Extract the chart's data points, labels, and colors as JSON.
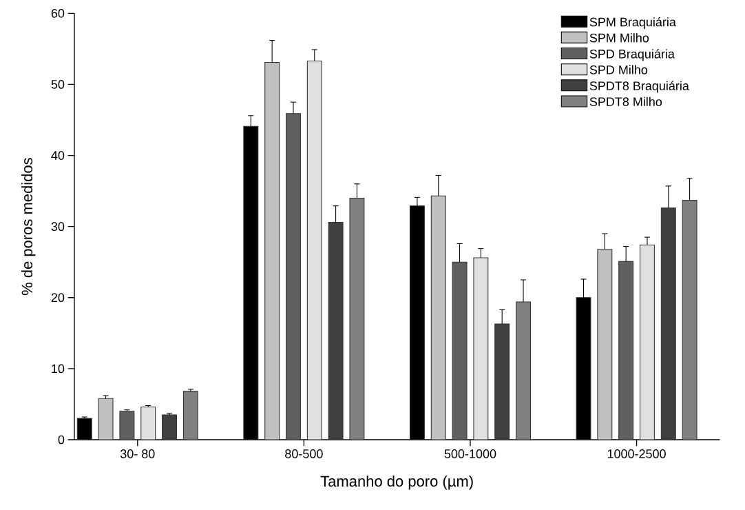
{
  "chart_data": {
    "type": "bar",
    "xlabel": "Tamanho do poro (µm)",
    "ylabel": "% de poros medidos",
    "categories": [
      "30- 80",
      "80-500",
      "500-1000",
      "1000-2500"
    ],
    "series": [
      {
        "name": "SPM Braquiária",
        "color": "#000000",
        "values": [
          3.0,
          44.1,
          32.9,
          20.0
        ],
        "errors": [
          0.2,
          1.5,
          1.2,
          2.6
        ]
      },
      {
        "name": "SPM Milho",
        "color": "#c0c0c0",
        "values": [
          5.8,
          53.1,
          34.3,
          26.8
        ],
        "errors": [
          0.4,
          3.1,
          2.9,
          2.2
        ]
      },
      {
        "name": "SPD Braquiária",
        "color": "#606060",
        "values": [
          4.0,
          45.9,
          25.0,
          25.1
        ],
        "errors": [
          0.2,
          1.6,
          2.6,
          2.1
        ]
      },
      {
        "name": "SPD Milho",
        "color": "#e0e0e0",
        "values": [
          4.6,
          53.3,
          25.6,
          27.4
        ],
        "errors": [
          0.2,
          1.6,
          1.3,
          1.1
        ]
      },
      {
        "name": "SPDT8 Braquiária",
        "color": "#404040",
        "values": [
          3.5,
          30.6,
          16.3,
          32.6
        ],
        "errors": [
          0.2,
          2.3,
          2.0,
          3.1
        ]
      },
      {
        "name": "SPDT8 Milho",
        "color": "#808080",
        "values": [
          6.8,
          34.0,
          19.4,
          33.7
        ],
        "errors": [
          0.3,
          2.0,
          3.1,
          3.1
        ]
      }
    ],
    "ylim": [
      0,
      60
    ],
    "yticks": [
      0,
      10,
      20,
      30,
      40,
      50,
      60
    ],
    "grid": false,
    "legend": "top right"
  }
}
